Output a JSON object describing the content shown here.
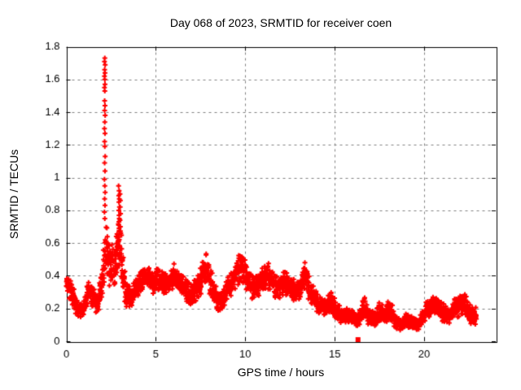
{
  "chart_data": {
    "type": "scatter",
    "title": "Day 068 of 2023, SRMTID for receiver coen",
    "xlabel": "GPS time / hours",
    "ylabel": "SRMTID / TECUs",
    "xlim": [
      0,
      24
    ],
    "ylim": [
      0,
      1.8
    ],
    "xticks": [
      "0",
      "5",
      "10",
      "15",
      "20"
    ],
    "yticks": [
      "0",
      "0.2",
      "0.4",
      "0.6",
      "0.8",
      "1",
      "1.2",
      "1.4",
      "1.6",
      "1.8"
    ],
    "grid": "dashed",
    "legend": "none",
    "marker": "plus",
    "marker_color": "#ff0000",
    "grid_color": "#808080",
    "axis_color": "#000000",
    "background_color": "#ffffff",
    "sampling_interval_hours": 0.008333,
    "x_end": 22.92,
    "seed": 68,
    "envelope": {
      "x": [
        0.0,
        0.3,
        0.6,
        0.9,
        1.2,
        1.5,
        1.75,
        2.0,
        2.2,
        2.45,
        2.7,
        2.95,
        3.1,
        3.3,
        3.6,
        3.9,
        4.2,
        4.5,
        4.8,
        5.1,
        5.4,
        5.7,
        6.0,
        6.3,
        6.6,
        6.9,
        7.2,
        7.5,
        7.8,
        8.1,
        8.4,
        8.7,
        9.0,
        9.3,
        9.6,
        9.8,
        10.1,
        10.4,
        10.7,
        11.0,
        11.3,
        11.6,
        11.9,
        12.2,
        12.5,
        12.8,
        13.1,
        13.35,
        13.6,
        13.9,
        14.2,
        14.5,
        14.8,
        15.1,
        15.4,
        15.7,
        16.0,
        16.3,
        16.6,
        16.9,
        17.2,
        17.5,
        17.8,
        18.1,
        18.4,
        18.7,
        19.0,
        19.3,
        19.6,
        19.9,
        20.2,
        20.5,
        20.8,
        21.1,
        21.4,
        21.7,
        22.0,
        22.3,
        22.6,
        22.9
      ],
      "mean": [
        0.36,
        0.3,
        0.2,
        0.18,
        0.3,
        0.27,
        0.22,
        0.38,
        0.55,
        0.48,
        0.45,
        0.6,
        0.5,
        0.3,
        0.27,
        0.32,
        0.36,
        0.4,
        0.35,
        0.38,
        0.36,
        0.35,
        0.4,
        0.36,
        0.33,
        0.28,
        0.3,
        0.37,
        0.46,
        0.35,
        0.26,
        0.24,
        0.33,
        0.36,
        0.44,
        0.47,
        0.38,
        0.32,
        0.35,
        0.38,
        0.4,
        0.35,
        0.33,
        0.37,
        0.33,
        0.31,
        0.33,
        0.41,
        0.31,
        0.25,
        0.22,
        0.2,
        0.25,
        0.18,
        0.15,
        0.16,
        0.14,
        0.13,
        0.2,
        0.15,
        0.13,
        0.18,
        0.15,
        0.2,
        0.12,
        0.1,
        0.13,
        0.12,
        0.1,
        0.14,
        0.2,
        0.22,
        0.2,
        0.17,
        0.15,
        0.2,
        0.22,
        0.24,
        0.16,
        0.15
      ],
      "spread": [
        0.05,
        0.06,
        0.05,
        0.04,
        0.06,
        0.06,
        0.05,
        0.1,
        0.16,
        0.12,
        0.1,
        0.16,
        0.15,
        0.08,
        0.06,
        0.06,
        0.07,
        0.06,
        0.06,
        0.06,
        0.06,
        0.06,
        0.07,
        0.06,
        0.06,
        0.06,
        0.07,
        0.08,
        0.08,
        0.08,
        0.06,
        0.05,
        0.07,
        0.07,
        0.08,
        0.08,
        0.08,
        0.07,
        0.07,
        0.07,
        0.07,
        0.07,
        0.06,
        0.07,
        0.06,
        0.06,
        0.06,
        0.07,
        0.07,
        0.06,
        0.05,
        0.05,
        0.06,
        0.05,
        0.04,
        0.04,
        0.04,
        0.04,
        0.07,
        0.05,
        0.04,
        0.06,
        0.05,
        0.06,
        0.04,
        0.03,
        0.04,
        0.04,
        0.03,
        0.04,
        0.05,
        0.05,
        0.05,
        0.05,
        0.04,
        0.05,
        0.06,
        0.06,
        0.05,
        0.05
      ]
    },
    "spike_points": [
      [
        2.15,
        1.73
      ],
      [
        2.13,
        1.71
      ],
      [
        2.17,
        1.69
      ],
      [
        2.14,
        1.66
      ],
      [
        2.16,
        1.64
      ],
      [
        2.13,
        1.62
      ],
      [
        2.15,
        1.6
      ],
      [
        2.16,
        1.57
      ],
      [
        2.13,
        1.55
      ],
      [
        2.15,
        1.53
      ],
      [
        2.14,
        1.47
      ],
      [
        2.16,
        1.44
      ],
      [
        2.14,
        1.41
      ],
      [
        2.17,
        1.38
      ],
      [
        2.15,
        1.34
      ],
      [
        2.13,
        1.3
      ],
      [
        2.16,
        1.27
      ],
      [
        2.14,
        1.22
      ],
      [
        2.15,
        1.19
      ],
      [
        2.17,
        1.13
      ],
      [
        2.14,
        1.09
      ],
      [
        2.16,
        1.04
      ],
      [
        2.13,
        0.99
      ],
      [
        2.15,
        0.95
      ],
      [
        2.17,
        0.91
      ],
      [
        2.14,
        0.87
      ],
      [
        2.16,
        0.83
      ],
      [
        2.13,
        0.79
      ],
      [
        2.15,
        0.75
      ],
      [
        2.92,
        0.95
      ],
      [
        2.95,
        0.92
      ],
      [
        2.93,
        0.89
      ],
      [
        2.96,
        0.87
      ],
      [
        2.94,
        0.85
      ],
      [
        2.97,
        0.82
      ],
      [
        2.93,
        0.8
      ],
      [
        2.95,
        0.77
      ],
      [
        2.96,
        0.75
      ],
      [
        2.94,
        0.73
      ],
      [
        2.92,
        0.71
      ],
      [
        2.95,
        0.69
      ],
      [
        2.97,
        0.67
      ],
      [
        2.94,
        0.65
      ],
      [
        3.0,
        0.9
      ],
      [
        3.02,
        0.86
      ],
      [
        3.01,
        0.82
      ],
      [
        3.03,
        0.78
      ],
      [
        3.0,
        0.74
      ],
      [
        3.02,
        0.7
      ],
      [
        3.04,
        0.66
      ]
    ],
    "outlier_square": {
      "x": 16.3,
      "y": 0.01
    }
  }
}
